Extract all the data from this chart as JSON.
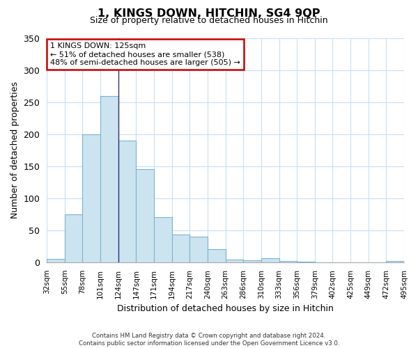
{
  "title": "1, KINGS DOWN, HITCHIN, SG4 9QP",
  "subtitle": "Size of property relative to detached houses in Hitchin",
  "xlabel": "Distribution of detached houses by size in Hitchin",
  "ylabel": "Number of detached properties",
  "bar_color": "#cce4f0",
  "bar_edge_color": "#7ab3d0",
  "bin_labels": [
    "32sqm",
    "55sqm",
    "78sqm",
    "101sqm",
    "124sqm",
    "147sqm",
    "171sqm",
    "194sqm",
    "217sqm",
    "240sqm",
    "263sqm",
    "286sqm",
    "310sqm",
    "333sqm",
    "356sqm",
    "379sqm",
    "402sqm",
    "425sqm",
    "449sqm",
    "472sqm",
    "495sqm"
  ],
  "values": [
    5,
    75,
    200,
    260,
    190,
    145,
    70,
    43,
    40,
    20,
    4,
    3,
    6,
    2,
    1,
    0,
    0,
    0,
    0,
    2
  ],
  "ylim": [
    0,
    350
  ],
  "yticks": [
    0,
    50,
    100,
    150,
    200,
    250,
    300,
    350
  ],
  "annotation_title": "1 KINGS DOWN: 125sqm",
  "annotation_line1": "← 51% of detached houses are smaller (538)",
  "annotation_line2": "48% of semi-detached houses are larger (505) →",
  "annotation_box_color": "white",
  "annotation_box_edge": "#cc0000",
  "vline_bar_index": 3,
  "footer_line1": "Contains HM Land Registry data © Crown copyright and database right 2024.",
  "footer_line2": "Contains public sector information licensed under the Open Government Licence v3.0.",
  "bg_color": "white",
  "grid_color": "#c8dff0"
}
